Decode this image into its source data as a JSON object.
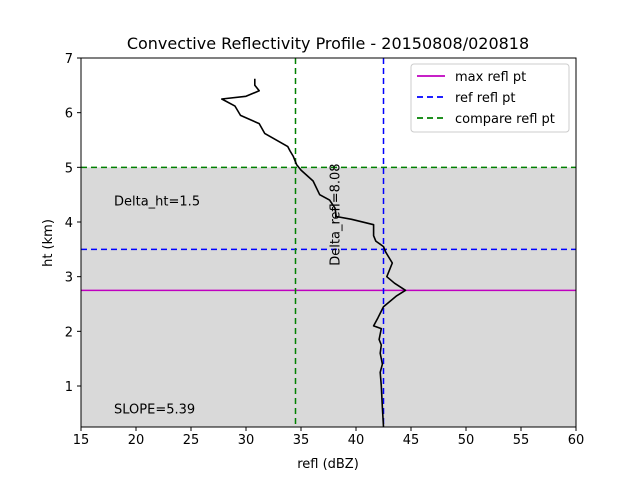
{
  "chart_data": {
    "type": "line",
    "title": "Convective Reflectivity Profile - 20150808/020818",
    "xlabel": "refl (dBZ)",
    "ylabel": "ht (km)",
    "xlim": [
      15,
      60
    ],
    "ylim": [
      0.25,
      7
    ],
    "xticks": [
      15,
      20,
      25,
      30,
      35,
      40,
      45,
      50,
      55,
      60
    ],
    "yticks": [
      1,
      2,
      3,
      4,
      5,
      6,
      7
    ],
    "grid": false,
    "legend_position": "top-right",
    "shaded_band": {
      "y_from": 0.25,
      "y_to": 5.0,
      "color": "#d9d9d9"
    },
    "series": [
      {
        "kind": "profile",
        "color": "#000000",
        "points": [
          [
            42.5,
            0.25
          ],
          [
            42.4,
            0.6
          ],
          [
            42.3,
            1.0
          ],
          [
            42.2,
            1.25
          ],
          [
            42.4,
            1.4
          ],
          [
            42.2,
            1.6
          ],
          [
            42.3,
            1.75
          ],
          [
            42.1,
            1.85
          ],
          [
            42.3,
            2.05
          ],
          [
            41.6,
            2.1
          ],
          [
            42.0,
            2.25
          ],
          [
            42.5,
            2.45
          ],
          [
            43.7,
            2.65
          ],
          [
            44.5,
            2.75
          ],
          [
            43.5,
            2.88
          ],
          [
            42.8,
            3.0
          ],
          [
            43.3,
            3.25
          ],
          [
            42.7,
            3.45
          ],
          [
            42.5,
            3.55
          ],
          [
            41.8,
            3.65
          ],
          [
            41.6,
            3.75
          ],
          [
            41.6,
            3.95
          ],
          [
            39.6,
            4.05
          ],
          [
            38.2,
            4.1
          ],
          [
            38.1,
            4.25
          ],
          [
            37.6,
            4.4
          ],
          [
            36.7,
            4.5
          ],
          [
            36.1,
            4.75
          ],
          [
            35.0,
            4.95
          ],
          [
            34.6,
            5.05
          ],
          [
            34.3,
            5.2
          ],
          [
            34.0,
            5.3
          ],
          [
            33.8,
            5.38
          ],
          [
            31.7,
            5.62
          ],
          [
            31.2,
            5.8
          ],
          [
            29.5,
            5.95
          ],
          [
            29.0,
            6.12
          ],
          [
            27.8,
            6.25
          ],
          [
            30.0,
            6.3
          ],
          [
            31.2,
            6.4
          ],
          [
            30.8,
            6.5
          ],
          [
            30.8,
            6.62
          ]
        ]
      }
    ],
    "reference_lines": [
      {
        "name": "max refl pt",
        "orientation": "horizontal",
        "value": 2.75,
        "style": "solid",
        "color": "#bf00bf"
      },
      {
        "name": "ref refl pt",
        "orientation": "horizontal",
        "value": 3.5,
        "style": "dashed",
        "color": "#0000ff"
      },
      {
        "name": "ref refl pt",
        "orientation": "vertical",
        "value": 42.5,
        "style": "dashed",
        "color": "#0000ff"
      },
      {
        "name": "compare refl pt",
        "orientation": "horizontal",
        "value": 5.0,
        "style": "dashed",
        "color": "#008000"
      },
      {
        "name": "compare refl pt",
        "orientation": "vertical",
        "value": 34.5,
        "style": "dashed",
        "color": "#008000"
      }
    ],
    "legend": [
      {
        "label": "max refl pt",
        "color": "#bf00bf",
        "style": "solid"
      },
      {
        "label": "ref refl pt",
        "color": "#0000ff",
        "style": "dashed"
      },
      {
        "label": "compare refl pt",
        "color": "#008000",
        "style": "dashed"
      }
    ],
    "annotations": [
      {
        "text": "Delta_ht=1.5",
        "x": 18,
        "y": 4.3,
        "rotation": 0
      },
      {
        "text": "Delta_refl=8.08",
        "x": 38.5,
        "y": 3.2,
        "rotation": -90
      },
      {
        "text": "SLOPE=5.39",
        "x": 18,
        "y": 0.5,
        "rotation": 0
      }
    ]
  }
}
